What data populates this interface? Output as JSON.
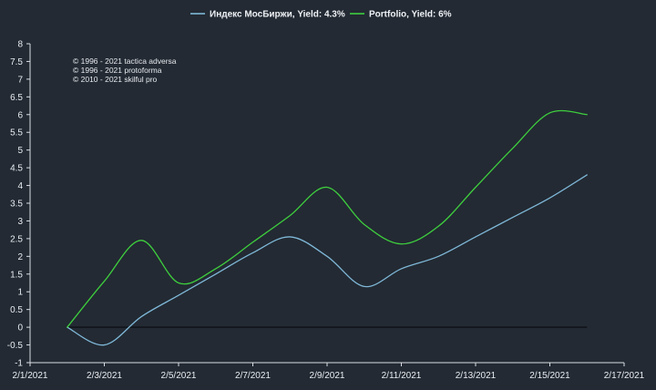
{
  "chart_data": {
    "type": "line",
    "title": "",
    "xlabel": "",
    "ylabel": "",
    "x_ticks": [
      "2/1/2021",
      "2/3/2021",
      "2/5/2021",
      "2/7/2021",
      "2/9/2021",
      "2/11/2021",
      "2/13/2021",
      "2/15/2021",
      "2/17/2021"
    ],
    "xlim": [
      "2021-02-01",
      "2021-02-17"
    ],
    "ylim": [
      -1,
      8
    ],
    "y_ticks": [
      -1,
      -0.5,
      0,
      0.5,
      1,
      1.5,
      2,
      2.5,
      3,
      3.5,
      4,
      4.5,
      5,
      5.5,
      6,
      6.5,
      7,
      7.5,
      8
    ],
    "legend_position": "top-center",
    "grid": false,
    "annotations": [
      "© 1996 - 2021 tactica adversa",
      "© 1996 - 2021 protoforma",
      "© 2010 - 2021 skilful pro"
    ],
    "series": [
      {
        "name": "Индекс МосБиржи, Yield: 4.3%",
        "color": "#7fb8d8",
        "points": [
          [
            "2021-02-02",
            0
          ],
          [
            "2021-02-03",
            -0.5
          ],
          [
            "2021-02-04",
            0.3
          ],
          [
            "2021-02-05",
            0.9
          ],
          [
            "2021-02-06",
            1.5
          ],
          [
            "2021-02-07",
            2.1
          ],
          [
            "2021-02-08",
            2.55
          ],
          [
            "2021-02-09",
            2.0
          ],
          [
            "2021-02-10",
            1.15
          ],
          [
            "2021-02-11",
            1.65
          ],
          [
            "2021-02-12",
            2.0
          ],
          [
            "2021-02-13",
            2.55
          ],
          [
            "2021-02-14",
            3.1
          ],
          [
            "2021-02-15",
            3.65
          ],
          [
            "2021-02-16",
            4.3
          ]
        ]
      },
      {
        "name": "Portfolio, Yield: 6%",
        "color": "#3ecf3e",
        "points": [
          [
            "2021-02-02",
            0
          ],
          [
            "2021-02-03",
            1.3
          ],
          [
            "2021-02-04",
            2.45
          ],
          [
            "2021-02-05",
            1.25
          ],
          [
            "2021-02-06",
            1.65
          ],
          [
            "2021-02-07",
            2.4
          ],
          [
            "2021-02-08",
            3.15
          ],
          [
            "2021-02-09",
            3.95
          ],
          [
            "2021-02-10",
            2.9
          ],
          [
            "2021-02-11",
            2.35
          ],
          [
            "2021-02-12",
            2.85
          ],
          [
            "2021-02-13",
            3.95
          ],
          [
            "2021-02-14",
            5.05
          ],
          [
            "2021-02-15",
            6.05
          ],
          [
            "2021-02-16",
            6.0
          ]
        ]
      }
    ],
    "zero_line_color": "#0e1116"
  }
}
